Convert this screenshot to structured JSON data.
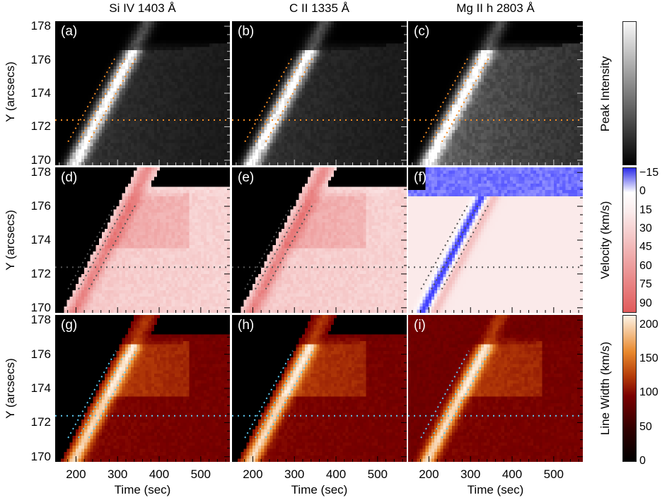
{
  "chart_data": {
    "type": "heatmap",
    "title": "",
    "columns": [
      "Si IV 1403 Å",
      "C II 1335 Å",
      "Mg II h 2803 Å"
    ],
    "rows": [
      "Peak Intensity",
      "Velocity (km/s)",
      "Line Width (km/s)"
    ],
    "panel_labels": [
      "(a)",
      "(b)",
      "(c)",
      "(d)",
      "(e)",
      "(f)",
      "(g)",
      "(h)",
      "(i)"
    ],
    "xlabel": "Time (sec)",
    "ylabel": "Y (arcsecs)",
    "xlim": [
      150,
      570
    ],
    "ylim": [
      169.7,
      178.3
    ],
    "xticks": [
      200,
      300,
      400,
      500
    ],
    "yticks": [
      170,
      172,
      174,
      176,
      178
    ],
    "overlays": {
      "horizontal_line_y": 172.4,
      "diagonal_lines": [
        {
          "x": [
            181,
            296
          ],
          "y": [
            171.1,
            176.2
          ]
        },
        {
          "x": [
            206,
            321
          ],
          "y": [
            171.1,
            176.2
          ]
        },
        {
          "x": [
            231,
            346
          ],
          "y": [
            171.1,
            176.2
          ]
        }
      ],
      "colors": {
        "intensity": "#f08a24",
        "velocity": "#555555",
        "width": "#5ec8f0"
      }
    },
    "colorbars": [
      {
        "label": "Peak Intensity",
        "ticks": [],
        "range": [
          0,
          1
        ],
        "colormap": "gray"
      },
      {
        "label": "Velocity (km/s)",
        "ticks": [
          -15,
          0,
          15,
          30,
          45,
          60,
          75,
          90
        ],
        "range": [
          -20,
          97
        ],
        "colormap": "blue-white-red"
      },
      {
        "label": "Line Width (km/s)",
        "ticks": [
          0,
          50,
          100,
          150,
          200
        ],
        "range": [
          0,
          215
        ],
        "colormap": "heat"
      }
    ]
  }
}
